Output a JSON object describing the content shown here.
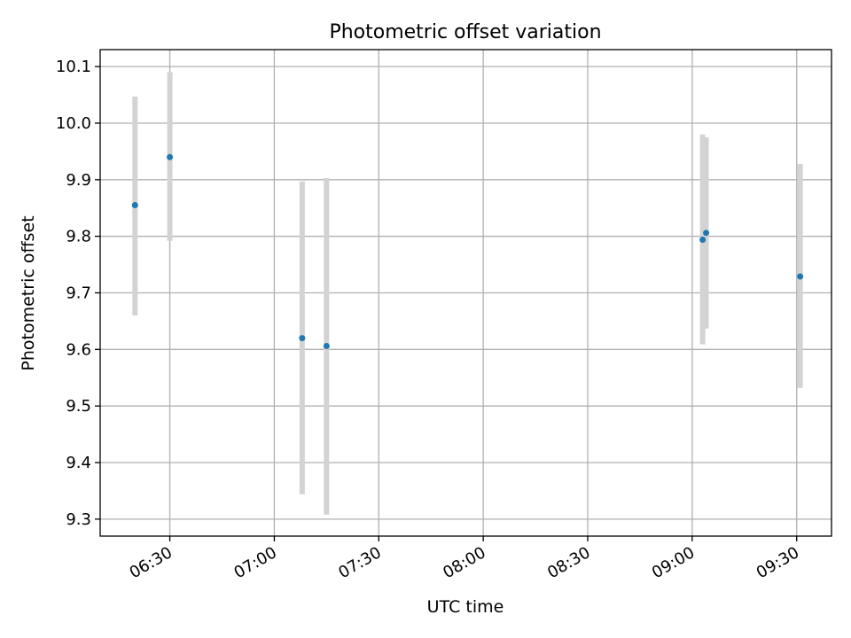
{
  "chart_data": {
    "type": "scatter",
    "title": "Photometric offset variation",
    "xlabel": "UTC time",
    "ylabel": "Photometric offset",
    "grid": true,
    "xlim": [
      "06:10",
      "09:40"
    ],
    "ylim": [
      9.27,
      10.13
    ],
    "x_ticks": [
      "06:30",
      "07:00",
      "07:30",
      "08:00",
      "08:30",
      "09:00",
      "09:30"
    ],
    "y_ticks": [
      "9.3",
      "9.4",
      "9.5",
      "9.6",
      "9.7",
      "9.8",
      "9.9",
      "10.0",
      "10.1"
    ],
    "series": [
      {
        "marker_color": "#1f77b4",
        "errorbar_color": "#d3d3d3",
        "points": [
          {
            "x": "06:20",
            "y": 9.855,
            "ylow": 9.66,
            "yhigh": 10.047
          },
          {
            "x": "06:30",
            "y": 9.94,
            "ylow": 9.792,
            "yhigh": 10.09
          },
          {
            "x": "07:08",
            "y": 9.62,
            "ylow": 9.344,
            "yhigh": 9.897
          },
          {
            "x": "07:15",
            "y": 9.606,
            "ylow": 9.308,
            "yhigh": 9.903
          },
          {
            "x": "09:03",
            "y": 9.794,
            "ylow": 9.609,
            "yhigh": 9.98
          },
          {
            "x": "09:04",
            "y": 9.806,
            "ylow": 9.637,
            "yhigh": 9.975
          },
          {
            "x": "09:31",
            "y": 9.729,
            "ylow": 9.532,
            "yhigh": 9.928
          }
        ]
      }
    ]
  }
}
